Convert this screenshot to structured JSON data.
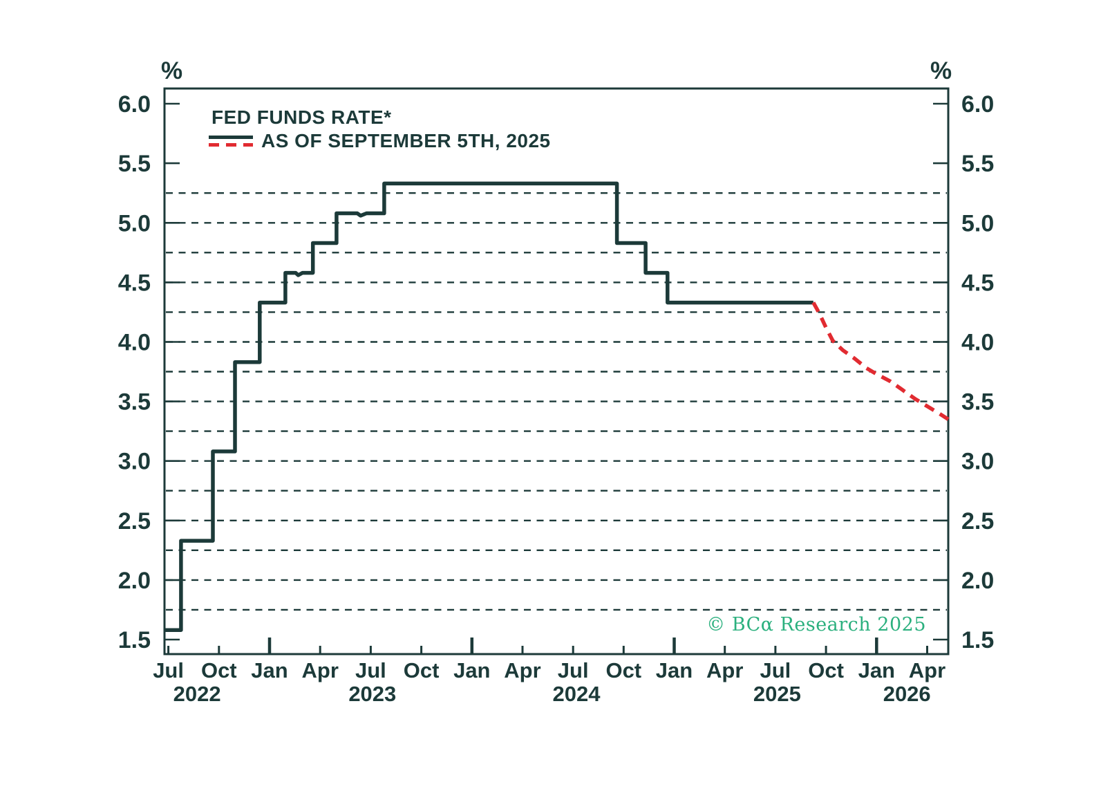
{
  "colors": {
    "axis": "#1c3a39",
    "historical_line": "#1c3a39",
    "projection_line": "#e12b31",
    "watermark": "#2bb07e",
    "background": "#ffffff"
  },
  "chart_data": {
    "type": "line",
    "title": "FED FUNDS RATE*",
    "y_unit": "%",
    "source": "© BCα Research 2025",
    "legend": {
      "series1_label": "FED FUNDS RATE*",
      "series2_label": "AS OF SEPTEMBER 5TH, 2025"
    },
    "ylim": [
      1.378,
      6.128
    ],
    "xlim_months": [
      -0.23,
      46.25
    ],
    "x_epoch": "months since Jul 2022",
    "y_ticks": [
      1.5,
      2.0,
      2.5,
      3.0,
      3.5,
      4.0,
      4.5,
      5.0,
      5.5,
      6.0
    ],
    "y_tick_labels": [
      "1.5",
      "2.0",
      "2.5",
      "3.0",
      "3.5",
      "4.0",
      "4.5",
      "5.0",
      "5.5",
      "6.0"
    ],
    "y_gridlines": [
      1.75,
      2.0,
      2.25,
      2.5,
      2.75,
      3.0,
      3.25,
      3.5,
      3.75,
      4.0,
      4.25,
      4.5,
      4.75,
      5.0,
      5.25
    ],
    "x_ticks": [
      {
        "m": 0,
        "label": "Jul",
        "major": false
      },
      {
        "m": 3,
        "label": "Oct",
        "major": false
      },
      {
        "m": 6,
        "label": "Jan",
        "major": true
      },
      {
        "m": 9,
        "label": "Apr",
        "major": false
      },
      {
        "m": 12,
        "label": "Jul",
        "major": false
      },
      {
        "m": 15,
        "label": "Oct",
        "major": false
      },
      {
        "m": 18,
        "label": "Jan",
        "major": true
      },
      {
        "m": 21,
        "label": "Apr",
        "major": false
      },
      {
        "m": 24,
        "label": "Jul",
        "major": false
      },
      {
        "m": 27,
        "label": "Oct",
        "major": false
      },
      {
        "m": 30,
        "label": "Jan",
        "major": true
      },
      {
        "m": 33,
        "label": "Apr",
        "major": false
      },
      {
        "m": 36,
        "label": "Jul",
        "major": false
      },
      {
        "m": 39,
        "label": "Oct",
        "major": false
      },
      {
        "m": 42,
        "label": "Jan",
        "major": true
      },
      {
        "m": 45,
        "label": "Apr",
        "major": false
      }
    ],
    "year_labels": [
      {
        "m": 1.7,
        "label": "2022"
      },
      {
        "m": 12.1,
        "label": "2023"
      },
      {
        "m": 24.2,
        "label": "2024"
      },
      {
        "m": 36.1,
        "label": "2025"
      },
      {
        "m": 43.8,
        "label": "2026"
      }
    ],
    "series": [
      {
        "name": "FED FUNDS RATE*",
        "style": "solid",
        "color": "#1c3a39",
        "points": [
          [
            -0.23,
            1.58
          ],
          [
            0.75,
            1.58
          ],
          [
            0.75,
            2.33
          ],
          [
            2.64,
            2.33
          ],
          [
            2.64,
            3.08
          ],
          [
            3.95,
            3.08
          ],
          [
            3.95,
            3.83
          ],
          [
            5.42,
            3.83
          ],
          [
            5.42,
            4.33
          ],
          [
            6.94,
            4.33
          ],
          [
            6.94,
            4.58
          ],
          [
            7.55,
            4.58
          ],
          [
            7.7,
            4.56
          ],
          [
            7.95,
            4.58
          ],
          [
            8.57,
            4.58
          ],
          [
            8.57,
            4.83
          ],
          [
            9.97,
            4.83
          ],
          [
            9.97,
            5.08
          ],
          [
            11.2,
            5.08
          ],
          [
            11.4,
            5.06
          ],
          [
            11.75,
            5.08
          ],
          [
            12.8,
            5.08
          ],
          [
            12.8,
            5.33
          ],
          [
            26.6,
            5.33
          ],
          [
            26.6,
            4.83
          ],
          [
            28.3,
            4.83
          ],
          [
            28.3,
            4.58
          ],
          [
            29.6,
            4.58
          ],
          [
            29.6,
            4.33
          ],
          [
            38.25,
            4.33
          ]
        ]
      },
      {
        "name": "AS OF SEPTEMBER 5TH, 2025",
        "style": "dashed",
        "color": "#e12b31",
        "points": [
          [
            38.25,
            4.33
          ],
          [
            38.6,
            4.24
          ],
          [
            39.0,
            4.12
          ],
          [
            39.4,
            4.01
          ],
          [
            40.0,
            3.93
          ],
          [
            40.7,
            3.86
          ],
          [
            41.4,
            3.78
          ],
          [
            42.0,
            3.73
          ],
          [
            42.8,
            3.67
          ],
          [
            43.5,
            3.6
          ],
          [
            44.3,
            3.52
          ],
          [
            45.0,
            3.46
          ],
          [
            45.7,
            3.4
          ],
          [
            46.25,
            3.35
          ]
        ]
      }
    ]
  }
}
